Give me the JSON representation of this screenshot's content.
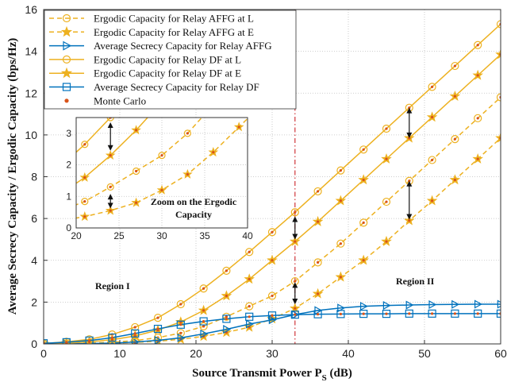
{
  "chart_data": {
    "type": "line",
    "xlabel": "Source Transmit Power P",
    "xlabel_sub": "S",
    "xlabel_unit": " (dB)",
    "ylabel": "Average Secrecy Capacity / Ergodic Capacity (bps/Hz)",
    "xlim": [
      0,
      60
    ],
    "ylim": [
      0,
      16
    ],
    "xticks": [
      "0",
      "10",
      "20",
      "30",
      "40",
      "50",
      "60"
    ],
    "yticks": [
      "0",
      "2",
      "4",
      "6",
      "8",
      "10",
      "12",
      "14",
      "16"
    ],
    "grid": "dotted",
    "legend_position": "top-left",
    "colors": {
      "orange": "#EDB120",
      "blue": "#0072BD",
      "red": "#D95319",
      "divider": "#D0363A"
    },
    "series": [
      {
        "name": "Ergodic Capacity for Relay AFFG at L",
        "style": "dashed",
        "marker": "circle",
        "color": "#EDB120",
        "x": [
          0,
          3,
          6,
          9,
          12,
          15,
          18,
          21,
          24,
          27,
          30,
          33,
          36,
          39,
          42,
          45,
          48,
          51,
          54,
          57,
          60
        ],
        "y": [
          0.01,
          0.02,
          0.04,
          0.08,
          0.16,
          0.3,
          0.52,
          0.84,
          1.3,
          1.8,
          2.3,
          3.0,
          3.9,
          4.8,
          5.8,
          6.8,
          7.8,
          8.8,
          9.8,
          10.8,
          11.8
        ]
      },
      {
        "name": "Ergodic Capacity for Relay AFFG at E",
        "style": "dashed",
        "marker": "star",
        "color": "#EDB120",
        "x": [
          0,
          3,
          6,
          9,
          12,
          15,
          18,
          21,
          24,
          27,
          30,
          33,
          36,
          39,
          42,
          45,
          48,
          51,
          54,
          57,
          60
        ],
        "y": [
          0.0,
          0.01,
          0.02,
          0.04,
          0.07,
          0.13,
          0.22,
          0.36,
          0.55,
          0.8,
          1.2,
          1.7,
          2.4,
          3.2,
          4.0,
          4.9,
          5.9,
          6.85,
          7.85,
          8.85,
          9.85
        ]
      },
      {
        "name": "Average Secrecy Capacity for Relay AFFG",
        "style": "solid",
        "marker": "triangle-right",
        "color": "#0072BD",
        "x": [
          0,
          3,
          6,
          9,
          12,
          15,
          18,
          21,
          24,
          27,
          30,
          33,
          36,
          39,
          42,
          45,
          48,
          51,
          54,
          57,
          60
        ],
        "y": [
          0.01,
          0.01,
          0.02,
          0.04,
          0.09,
          0.17,
          0.29,
          0.48,
          0.7,
          0.95,
          1.15,
          1.4,
          1.6,
          1.72,
          1.8,
          1.84,
          1.86,
          1.88,
          1.89,
          1.9,
          1.9
        ]
      },
      {
        "name": "Ergodic Capacity for Relay DF at L",
        "style": "solid",
        "marker": "circle",
        "color": "#EDB120",
        "x": [
          0,
          3,
          6,
          9,
          12,
          15,
          18,
          21,
          24,
          27,
          30,
          33,
          36,
          39,
          42,
          45,
          48,
          51,
          54,
          57,
          60
        ],
        "y": [
          0.02,
          0.1,
          0.22,
          0.45,
          0.8,
          1.25,
          1.9,
          2.65,
          3.5,
          4.4,
          5.35,
          6.3,
          7.3,
          8.3,
          9.3,
          10.3,
          11.3,
          12.3,
          13.3,
          14.3,
          15.3
        ]
      },
      {
        "name": "Ergodic Capacity for Relay DF at E",
        "style": "solid",
        "marker": "star",
        "color": "#EDB120",
        "x": [
          0,
          3,
          6,
          9,
          12,
          15,
          18,
          21,
          24,
          27,
          30,
          33,
          36,
          39,
          42,
          45,
          48,
          51,
          54,
          57,
          60
        ],
        "y": [
          0.01,
          0.04,
          0.1,
          0.2,
          0.38,
          0.66,
          1.05,
          1.6,
          2.3,
          3.1,
          4.0,
          4.9,
          5.85,
          6.85,
          7.85,
          8.85,
          9.85,
          10.85,
          11.85,
          12.85,
          13.85
        ]
      },
      {
        "name": "Average Secrecy Capacity for Relay DF",
        "style": "solid",
        "marker": "square",
        "color": "#0072BD",
        "x": [
          0,
          3,
          6,
          9,
          12,
          15,
          18,
          21,
          24,
          27,
          30,
          33,
          36,
          39,
          42,
          45,
          48,
          51,
          54,
          57,
          60
        ],
        "y": [
          0.03,
          0.08,
          0.16,
          0.3,
          0.5,
          0.72,
          0.92,
          1.08,
          1.2,
          1.3,
          1.36,
          1.4,
          1.42,
          1.43,
          1.44,
          1.44,
          1.45,
          1.45,
          1.45,
          1.45,
          1.45
        ]
      },
      {
        "name": "Monte Carlo",
        "style": "markers-only",
        "marker": "dot",
        "color": "#D95319"
      }
    ],
    "inset": {
      "annotation": "Zoom on the Ergodic Capacity",
      "xlim": [
        20,
        40
      ],
      "ylim": [
        0,
        3.5
      ],
      "xticks": [
        "20",
        "25",
        "30",
        "35",
        "40"
      ],
      "yticks": [
        "0",
        "1",
        "2",
        "3"
      ]
    },
    "annotations": {
      "region_1": "Region I",
      "region_2": "Region II",
      "divider_x": 33
    }
  }
}
